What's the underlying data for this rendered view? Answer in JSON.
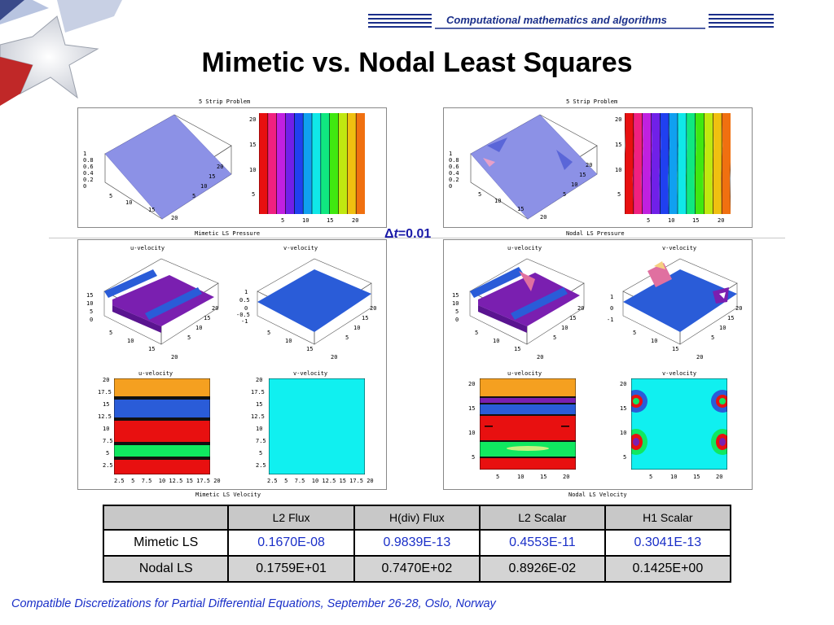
{
  "header": {
    "subtitle": "Computational mathematics and algorithms"
  },
  "title": "Mimetic vs. Nodal Least Squares",
  "delta_t": {
    "symbol": "Δ",
    "var": "t",
    "value": "=0.01"
  },
  "left_panels": {
    "pressure_title": "5 Strip Problem",
    "pressure_caption": "Mimetic LS Pressure",
    "velocity_caption": "Mimetic LS Velocity",
    "u_title": "u-velocity",
    "v_title": "v-velocity"
  },
  "right_panels": {
    "pressure_title": "5 Strip Problem",
    "pressure_caption": "Nodal LS Pressure",
    "velocity_caption": "Nodal LS Velocity",
    "u_title": "u-velocity",
    "v_title": "v-velocity"
  },
  "ticks": {
    "p3d_z": [
      "1",
      "0.8",
      "0.6",
      "0.4",
      "0.2",
      "0"
    ],
    "p3d_x": [
      "5",
      "10",
      "15",
      "20"
    ],
    "p3d_y": [
      "5",
      "10",
      "15",
      "20"
    ],
    "p2d_y": [
      "20",
      "15",
      "10",
      "5"
    ],
    "p2d_x": [
      "5",
      "10",
      "15",
      "20"
    ],
    "u3d_z": [
      "15",
      "10",
      "5",
      "0"
    ],
    "v3d_z": [
      "1",
      "0.5",
      "0",
      "-0.5",
      "-1"
    ],
    "v3d_z_right": [
      "1",
      "0",
      "-1"
    ],
    "c_y_left": [
      "20",
      "17.5",
      "15",
      "12.5",
      "10",
      "7.5",
      "5",
      "2.5"
    ],
    "c_x_left": "2.5  5  7.5  10 12.5 15 17.5 20",
    "c_y_right": [
      "20",
      "15",
      "10",
      "5"
    ],
    "c_x_right": [
      "5",
      "10",
      "15",
      "20"
    ]
  },
  "table": {
    "headers": [
      "",
      "L2 Flux",
      "H(div) Flux",
      "L2 Scalar",
      "H1 Scalar"
    ],
    "rows": [
      {
        "label": "Mimetic LS",
        "values": [
          "0.1670E-08",
          "0.9839E-13",
          "0.4553E-11",
          "0.3041E-13"
        ]
      },
      {
        "label": "Nodal LS",
        "values": [
          "0.1759E+01",
          "0.7470E+02",
          "0.8926E-02",
          "0.1425E+00"
        ]
      }
    ]
  },
  "footer": "Compatible Discretizations for Partial Differential Equations, September 26-28, Oslo, Norway",
  "colors": {
    "accent_blue": "#1a2fc8",
    "title_black": "#000000",
    "table_header": "#c8c8c8"
  }
}
